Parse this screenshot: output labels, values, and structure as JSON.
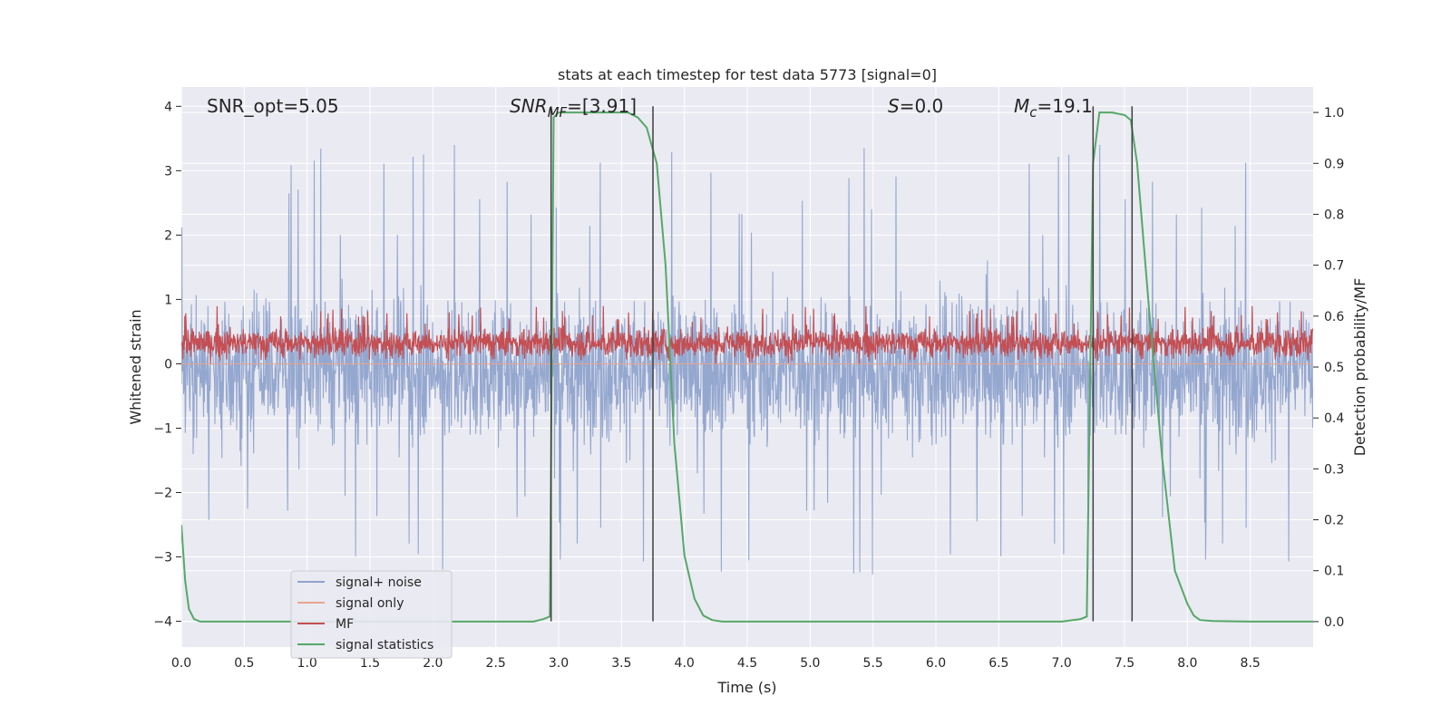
{
  "chart_data": {
    "type": "line",
    "title": "stats at each timestep for test data 5773 [signal=0]",
    "xlabel": "Time (s)",
    "ylabel": "Whitened strain",
    "y2label": "Detection probability/MF",
    "xlim": [
      0.0,
      9.0
    ],
    "ylim": [
      -4.4,
      4.3
    ],
    "y2lim": [
      -0.05,
      1.05
    ],
    "x_ticks": [
      0.0,
      0.5,
      1.0,
      1.5,
      2.0,
      2.5,
      3.0,
      3.5,
      4.0,
      4.5,
      5.0,
      5.5,
      6.0,
      6.5,
      7.0,
      7.5,
      8.0,
      8.5
    ],
    "x_tick_labels": [
      "0.0",
      "0.5",
      "1.0",
      "1.5",
      "2.0",
      "2.5",
      "3.0",
      "3.5",
      "4.0",
      "4.5",
      "5.0",
      "5.5",
      "6.0",
      "6.5",
      "7.0",
      "7.5",
      "8.0",
      "8.5"
    ],
    "y_ticks": [
      -4,
      -3,
      -2,
      -1,
      0,
      1,
      2,
      3,
      4
    ],
    "y_tick_labels": [
      "−4",
      "−3",
      "−2",
      "−1",
      "0",
      "1",
      "2",
      "3",
      "4"
    ],
    "y2_ticks": [
      0.0,
      0.1,
      0.2,
      0.3,
      0.4,
      0.5,
      0.6,
      0.7,
      0.8,
      0.9,
      1.0
    ],
    "y2_tick_labels": [
      "0.0",
      "0.1",
      "0.2",
      "0.3",
      "0.4",
      "0.5",
      "0.6",
      "0.7",
      "0.8",
      "0.9",
      "1.0"
    ],
    "grid": true,
    "background": "#eaeaf2",
    "legend_position": "lower-left",
    "annotations": {
      "snr_opt": "SNR_opt=5.05",
      "snr_mf_sym": "SNR",
      "snr_mf_sub": "MF",
      "snr_mf_val": "=[3.91]",
      "s_sym": "S",
      "s_val": "=0.0",
      "mc_sym": "M",
      "mc_sub": "c",
      "mc_val": "=19.1"
    },
    "series": [
      {
        "name": "signal+ noise",
        "color": "#8fa3cc",
        "axis": "left",
        "kind": "noise",
        "typical_range": [
          -1.7,
          1.5
        ],
        "peak_range": [
          -3.4,
          3.55
        ]
      },
      {
        "name": "signal only",
        "color": "#e8a58c",
        "axis": "left",
        "kind": "flat",
        "values": []
      },
      {
        "name": "MF",
        "color": "#c44e52",
        "axis": "left",
        "kind": "noise",
        "typical_range": [
          0.0,
          0.85
        ]
      },
      {
        "name": "signal statistics",
        "color": "#55a868",
        "axis": "right",
        "x": [
          0.0,
          0.03,
          0.06,
          0.1,
          0.15,
          0.2,
          0.3,
          1.0,
          2.0,
          2.8,
          2.88,
          2.93,
          2.96,
          3.0,
          3.2,
          3.4,
          3.55,
          3.63,
          3.7,
          3.78,
          3.85,
          3.92,
          4.0,
          4.08,
          4.15,
          4.22,
          4.3,
          4.5,
          5.0,
          6.0,
          7.0,
          7.15,
          7.2,
          7.25,
          7.3,
          7.4,
          7.5,
          7.55,
          7.6,
          7.7,
          7.8,
          7.9,
          8.0,
          8.05,
          8.1,
          8.2,
          8.5,
          9.0
        ],
        "values": [
          0.19,
          0.08,
          0.025,
          0.005,
          0.0,
          0.0,
          0.0,
          0.0,
          0.0,
          0.0,
          0.005,
          0.01,
          0.99,
          1.0,
          1.0,
          1.0,
          1.0,
          0.99,
          0.97,
          0.9,
          0.7,
          0.35,
          0.13,
          0.045,
          0.012,
          0.003,
          0.0,
          0.0,
          0.0,
          0.0,
          0.0,
          0.005,
          0.01,
          0.9,
          1.0,
          1.0,
          0.995,
          0.985,
          0.9,
          0.6,
          0.32,
          0.1,
          0.035,
          0.012,
          0.003,
          0.001,
          0.0,
          0.0
        ]
      }
    ],
    "vertical_lines": {
      "color": "#404040",
      "x": [
        2.94,
        3.75,
        7.25,
        7.56
      ],
      "y_from": -4.0,
      "y_to": 4.0
    }
  }
}
